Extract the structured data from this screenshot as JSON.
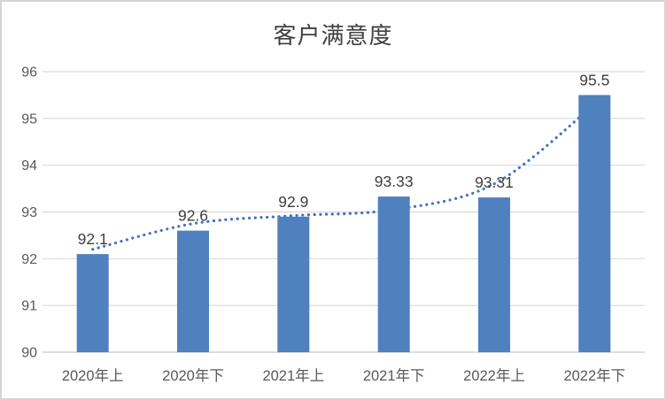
{
  "chart": {
    "background": "#ffffff",
    "border_color": "#d5d5d5"
  },
  "chart_data": {
    "type": "bar",
    "title": "客户满意度",
    "categories": [
      "2020年上",
      "2020年下",
      "2021年上",
      "2021年下",
      "2022年上",
      "2022年下"
    ],
    "values": [
      92.1,
      92.6,
      92.9,
      93.33,
      93.31,
      95.5
    ],
    "data_labels": [
      "92.1",
      "92.6",
      "92.9",
      "93.33",
      "93.31",
      "95.5"
    ],
    "xlabel": "",
    "ylabel": "",
    "ylim": [
      90,
      96
    ],
    "yticks": [
      "90",
      "91",
      "92",
      "93",
      "94",
      "95",
      "96"
    ],
    "grid": true,
    "legend": "none",
    "bar_color": "#4e81bd",
    "gridline_color": "#d9d9d9",
    "axis_line_color": "#c6c6c6",
    "tick_label_color": "#595959",
    "data_label_color": "#3f3f3f",
    "title_color": "#3f3f3f",
    "trendline": {
      "style": "dotted",
      "shape": "smooth",
      "color": "#4472c4",
      "points": [
        92.2,
        92.75,
        92.92,
        93.05,
        93.6,
        95.3
      ]
    }
  }
}
